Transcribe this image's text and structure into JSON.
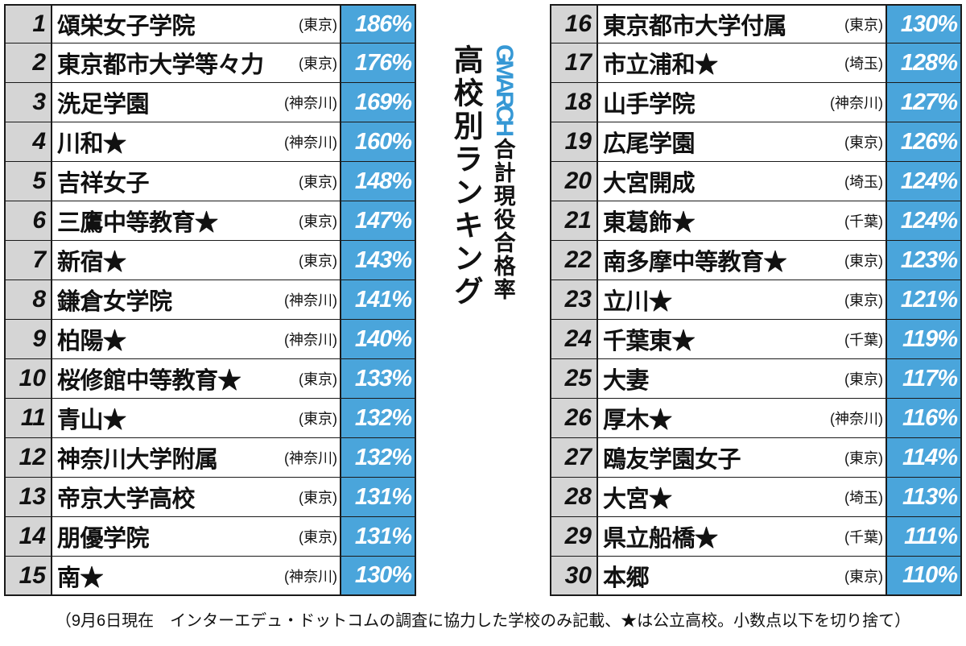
{
  "title": {
    "gmarch": "GMARCH",
    "sub": "合計現役合格率",
    "main": "高校別ランキング"
  },
  "footnote": "（9月6日現在　インターエデュ・ドットコムの調査に協力した学校のみ記載、★は公立高校。小数点以下を切り捨て）",
  "colors": {
    "rank_bg": "#d5d5d5",
    "pct_bg": "#4aa5db",
    "pct_text": "#ffffff",
    "border": "#1a1a1a",
    "accent": "#3698d5"
  },
  "left": [
    {
      "rank": "1",
      "school": "頌栄女子学院",
      "pref": "(東京)",
      "pct": "186%"
    },
    {
      "rank": "2",
      "school": "東京都市大学等々力",
      "pref": "(東京)",
      "pct": "176%"
    },
    {
      "rank": "3",
      "school": "洗足学園",
      "pref": "(神奈川)",
      "pct": "169%"
    },
    {
      "rank": "4",
      "school": "川和★",
      "pref": "(神奈川)",
      "pct": "160%"
    },
    {
      "rank": "5",
      "school": "吉祥女子",
      "pref": "(東京)",
      "pct": "148%"
    },
    {
      "rank": "6",
      "school": "三鷹中等教育★",
      "pref": "(東京)",
      "pct": "147%"
    },
    {
      "rank": "7",
      "school": "新宿★",
      "pref": "(東京)",
      "pct": "143%"
    },
    {
      "rank": "8",
      "school": "鎌倉女学院",
      "pref": "(神奈川)",
      "pct": "141%"
    },
    {
      "rank": "9",
      "school": "柏陽★",
      "pref": "(神奈川)",
      "pct": "140%"
    },
    {
      "rank": "10",
      "school": "桜修館中等教育★",
      "pref": "(東京)",
      "pct": "133%"
    },
    {
      "rank": "11",
      "school": "青山★",
      "pref": "(東京)",
      "pct": "132%"
    },
    {
      "rank": "12",
      "school": "神奈川大学附属",
      "pref": "(神奈川)",
      "pct": "132%"
    },
    {
      "rank": "13",
      "school": "帝京大学高校",
      "pref": "(東京)",
      "pct": "131%"
    },
    {
      "rank": "14",
      "school": "朋優学院",
      "pref": "(東京)",
      "pct": "131%"
    },
    {
      "rank": "15",
      "school": "南★",
      "pref": "(神奈川)",
      "pct": "130%"
    }
  ],
  "right": [
    {
      "rank": "16",
      "school": "東京都市大学付属",
      "pref": "(東京)",
      "pct": "130%"
    },
    {
      "rank": "17",
      "school": "市立浦和★",
      "pref": "(埼玉)",
      "pct": "128%"
    },
    {
      "rank": "18",
      "school": "山手学院",
      "pref": "(神奈川)",
      "pct": "127%"
    },
    {
      "rank": "19",
      "school": "広尾学園",
      "pref": "(東京)",
      "pct": "126%"
    },
    {
      "rank": "20",
      "school": "大宮開成",
      "pref": "(埼玉)",
      "pct": "124%"
    },
    {
      "rank": "21",
      "school": "東葛飾★",
      "pref": "(千葉)",
      "pct": "124%"
    },
    {
      "rank": "22",
      "school": "南多摩中等教育★",
      "pref": "(東京)",
      "pct": "123%"
    },
    {
      "rank": "23",
      "school": "立川★",
      "pref": "(東京)",
      "pct": "121%"
    },
    {
      "rank": "24",
      "school": "千葉東★",
      "pref": "(千葉)",
      "pct": "119%"
    },
    {
      "rank": "25",
      "school": "大妻",
      "pref": "(東京)",
      "pct": "117%"
    },
    {
      "rank": "26",
      "school": "厚木★",
      "pref": "(神奈川)",
      "pct": "116%"
    },
    {
      "rank": "27",
      "school": "鴎友学園女子",
      "pref": "(東京)",
      "pct": "114%"
    },
    {
      "rank": "28",
      "school": "大宮★",
      "pref": "(埼玉)",
      "pct": "113%"
    },
    {
      "rank": "29",
      "school": "県立船橋★",
      "pref": "(千葉)",
      "pct": "111%"
    },
    {
      "rank": "30",
      "school": "本郷",
      "pref": "(東京)",
      "pct": "110%"
    }
  ]
}
